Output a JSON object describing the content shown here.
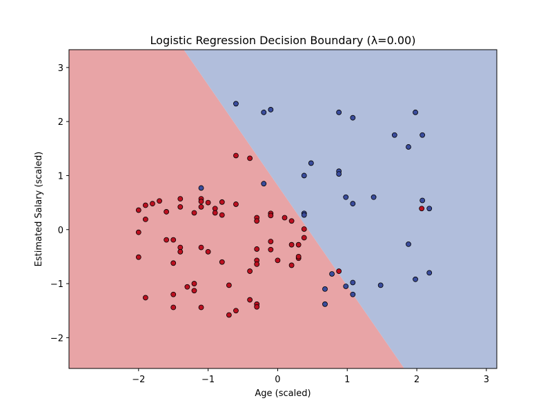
{
  "chart_data": {
    "type": "scatter",
    "title": "Logistic Regression Decision Boundary (λ=0.00)",
    "xlabel": "Age (scaled)",
    "ylabel": "Estimated Salary (scaled)",
    "xlim": [
      -3.0,
      3.15
    ],
    "ylim": [
      -2.57,
      3.33
    ],
    "xticks": [
      -2,
      -1,
      0,
      1,
      2,
      3
    ],
    "yticks": [
      -2,
      -1,
      0,
      1,
      2,
      3
    ],
    "grid": false,
    "colors": {
      "region_class0": "#e8a4a6",
      "region_class1": "#b1bedc",
      "point_class0": "#bb1020",
      "point_class1": "#3a4c9c",
      "point_edge": "#000000"
    },
    "decision_boundary": {
      "y_at_x_min_data": 3.33,
      "x_at_y_top": -1.35,
      "x_at_y_bottom": 1.82,
      "y_at_x_bottom": -2.57
    },
    "series": [
      {
        "class": 0,
        "points": [
          [
            -2.0,
            0.36
          ],
          [
            -2.0,
            -0.05
          ],
          [
            -2.0,
            -0.51
          ],
          [
            -1.9,
            0.45
          ],
          [
            -1.9,
            0.19
          ],
          [
            -1.9,
            -1.26
          ],
          [
            -1.8,
            0.48
          ],
          [
            -1.7,
            0.53
          ],
          [
            -1.6,
            0.33
          ],
          [
            -1.6,
            -0.19
          ],
          [
            -1.5,
            -0.19
          ],
          [
            -1.5,
            -0.62
          ],
          [
            -1.5,
            -1.2
          ],
          [
            -1.5,
            -1.44
          ],
          [
            -1.4,
            0.57
          ],
          [
            -1.4,
            0.42
          ],
          [
            -1.4,
            -0.33
          ],
          [
            -1.4,
            -0.41
          ],
          [
            -1.3,
            -1.06
          ],
          [
            -1.2,
            0.31
          ],
          [
            -1.2,
            -1.0
          ],
          [
            -1.2,
            -1.13
          ],
          [
            -1.1,
            0.57
          ],
          [
            -1.1,
            0.52
          ],
          [
            -1.1,
            0.42
          ],
          [
            -1.1,
            -0.33
          ],
          [
            -1.1,
            -1.44
          ],
          [
            -1.0,
            0.5
          ],
          [
            -1.0,
            -0.41
          ],
          [
            -0.9,
            0.39
          ],
          [
            -0.9,
            0.31
          ],
          [
            -0.8,
            0.51
          ],
          [
            -0.8,
            0.27
          ],
          [
            -0.8,
            -0.6
          ],
          [
            -0.7,
            -1.03
          ],
          [
            -0.7,
            -1.58
          ],
          [
            -0.6,
            1.37
          ],
          [
            -0.6,
            0.47
          ],
          [
            -0.6,
            -1.5
          ],
          [
            -0.4,
            1.32
          ],
          [
            -0.4,
            -0.77
          ],
          [
            -0.4,
            -1.3
          ],
          [
            -0.3,
            0.22
          ],
          [
            -0.3,
            0.16
          ],
          [
            -0.3,
            -0.36
          ],
          [
            -0.3,
            -0.57
          ],
          [
            -0.3,
            -0.64
          ],
          [
            -0.3,
            -1.38
          ],
          [
            -0.3,
            -1.43
          ],
          [
            -0.1,
            0.3
          ],
          [
            -0.1,
            0.26
          ],
          [
            -0.1,
            -0.22
          ],
          [
            -0.1,
            -0.37
          ],
          [
            0.0,
            -0.57
          ],
          [
            0.1,
            0.22
          ],
          [
            0.2,
            0.16
          ],
          [
            0.2,
            -0.28
          ],
          [
            0.2,
            -0.66
          ],
          [
            0.3,
            -0.28
          ],
          [
            0.3,
            -0.53
          ],
          [
            0.3,
            -0.5
          ],
          [
            0.38,
            0.01
          ],
          [
            0.38,
            -0.15
          ],
          [
            0.88,
            -0.77
          ],
          [
            2.07,
            0.39
          ]
        ]
      },
      {
        "class": 1,
        "points": [
          [
            -1.1,
            0.77
          ],
          [
            -0.6,
            2.33
          ],
          [
            -0.2,
            2.17
          ],
          [
            -0.2,
            0.85
          ],
          [
            -0.1,
            2.22
          ],
          [
            0.38,
            1.0
          ],
          [
            0.38,
            0.3
          ],
          [
            0.38,
            0.27
          ],
          [
            0.48,
            1.23
          ],
          [
            0.68,
            -1.1
          ],
          [
            0.68,
            -1.38
          ],
          [
            0.78,
            -0.82
          ],
          [
            0.88,
            2.17
          ],
          [
            0.88,
            1.08
          ],
          [
            0.88,
            1.03
          ],
          [
            0.98,
            0.6
          ],
          [
            0.98,
            -1.05
          ],
          [
            1.08,
            2.07
          ],
          [
            1.08,
            0.48
          ],
          [
            1.08,
            -0.98
          ],
          [
            1.08,
            -1.2
          ],
          [
            1.38,
            0.6
          ],
          [
            1.48,
            -1.03
          ],
          [
            1.68,
            1.75
          ],
          [
            1.88,
            1.53
          ],
          [
            1.88,
            -0.27
          ],
          [
            1.98,
            2.17
          ],
          [
            1.98,
            -0.92
          ],
          [
            2.08,
            1.75
          ],
          [
            2.08,
            0.54
          ],
          [
            2.18,
            0.39
          ],
          [
            2.18,
            -0.8
          ]
        ]
      }
    ]
  }
}
